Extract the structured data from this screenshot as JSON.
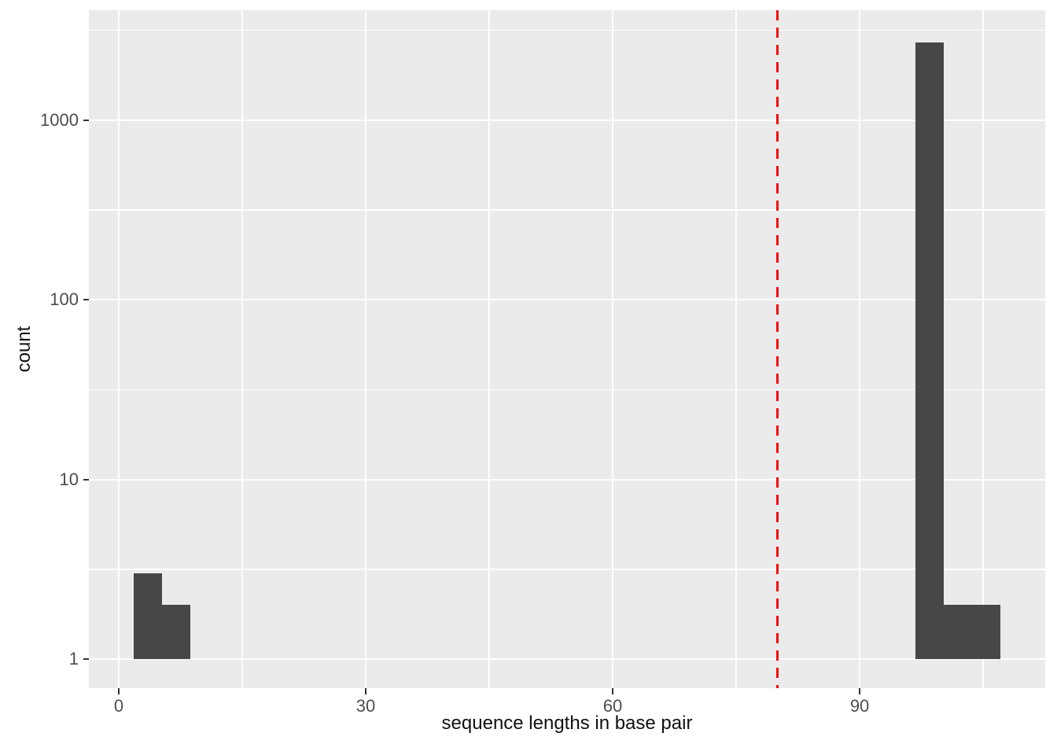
{
  "figure": {
    "background": "#FFFFFF"
  },
  "axis_titles": {
    "x": "sequence lengths in base pair",
    "y": "count"
  },
  "chart_data": {
    "type": "bar",
    "subtype": "histogram",
    "title": "",
    "xlabel": "sequence lengths in base pair",
    "ylabel": "count",
    "y_scale": "log10",
    "grid": "on",
    "legend": "none",
    "panel_bg": "#EBEBEB",
    "gridline_color": "#FFFFFF",
    "bar_color": "#474747",
    "tick_label_color": "#4D4D4D",
    "axes": {
      "xlim": [
        -3.63,
        112.54
      ],
      "ylim_log10": [
        -0.162,
        3.611
      ],
      "x_major_ticks": [
        0,
        30,
        60,
        90
      ],
      "x_minor_ticks": [
        15,
        45,
        75,
        105
      ],
      "y_major_ticks": [
        1,
        10,
        100,
        1000
      ],
      "y_minor_ticks": [
        3.162,
        31.62,
        316.2,
        3162
      ]
    },
    "baseline_count": 1,
    "bins": [
      {
        "x0": 1.8,
        "x1": 5.24,
        "count": 3
      },
      {
        "x0": 5.24,
        "x1": 8.68,
        "count": 2
      },
      {
        "x0": 96.8,
        "x1": 100.24,
        "count": 2700
      },
      {
        "x0": 100.24,
        "x1": 103.68,
        "count": 2
      },
      {
        "x0": 103.68,
        "x1": 107.12,
        "count": 2
      }
    ],
    "vline": {
      "x": 80,
      "color": "#F20D0D",
      "style": "dashed"
    }
  }
}
